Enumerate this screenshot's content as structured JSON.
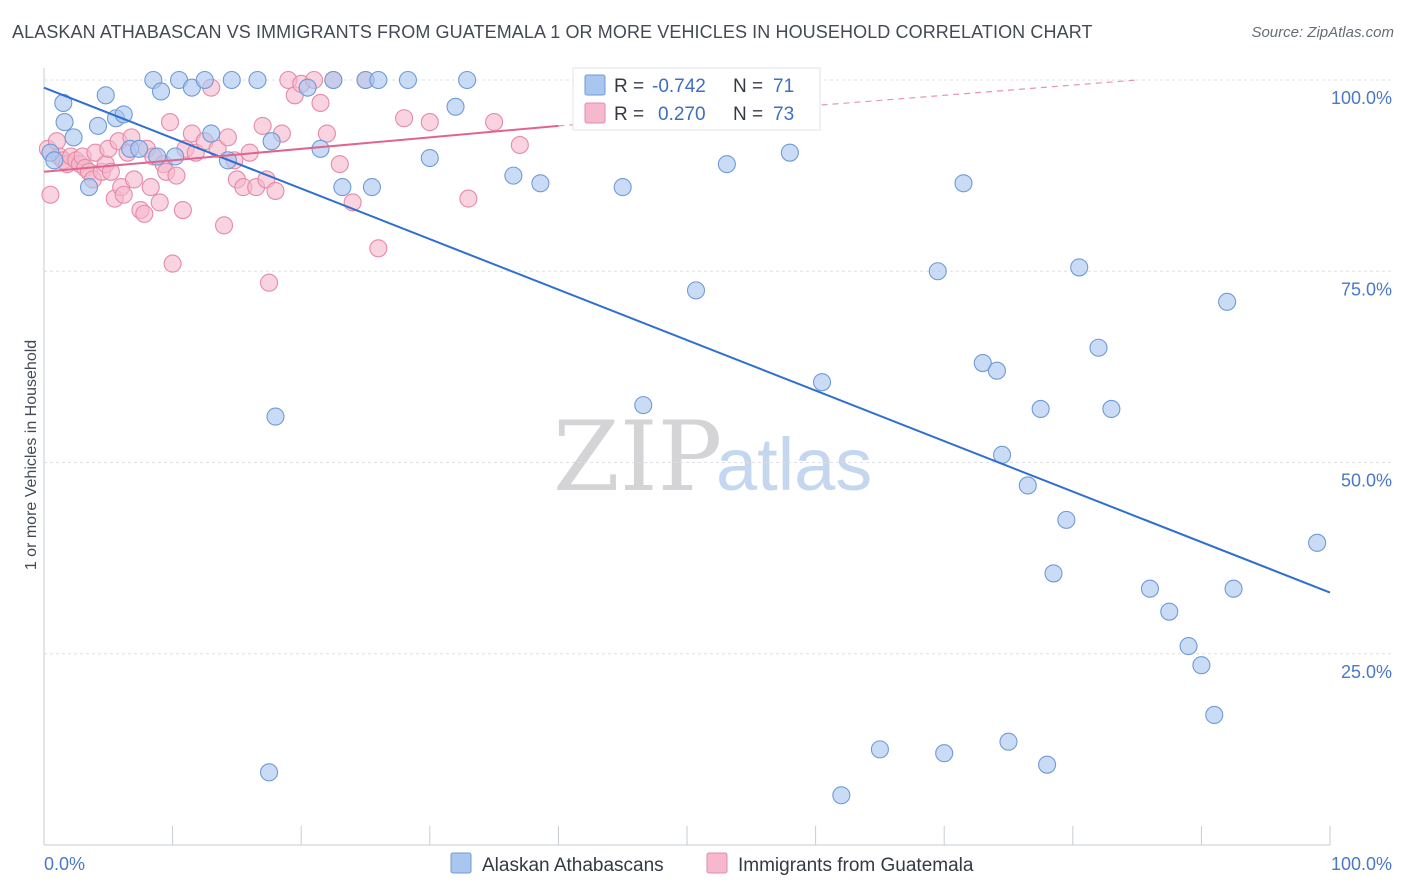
{
  "header": {
    "title": "ALASKAN ATHABASCAN VS IMMIGRANTS FROM GUATEMALA 1 OR MORE VEHICLES IN HOUSEHOLD CORRELATION CHART",
    "source": "Source: ZipAtlas.com"
  },
  "watermark": {
    "zip": "ZIP",
    "atlas": "atlas"
  },
  "colors": {
    "blue_fill": "#a9c6ef",
    "blue_stroke": "#6f9ad8",
    "blue_line": "#2f6fd0",
    "pink_fill": "#f6b8cc",
    "pink_stroke": "#e68aa8",
    "pink_line": "#e0648e",
    "grid": "#dde1e6",
    "tick_text": "#4a78c8"
  },
  "stats": {
    "r_label": "R =",
    "n_label": "N =",
    "blue": {
      "r": "-0.742",
      "n": "71"
    },
    "pink": {
      "r": "0.270",
      "n": "73"
    }
  },
  "chart_data": {
    "type": "scatter",
    "title": "ALASKAN ATHABASCAN VS IMMIGRANTS FROM GUATEMALA 1 OR MORE VEHICLES IN HOUSEHOLD CORRELATION CHART",
    "xlabel": "",
    "ylabel": "1 or more Vehicles in Household",
    "xlim": [
      0,
      100
    ],
    "ylim": [
      0,
      100
    ],
    "x_tick_labels": {
      "left": "0.0%",
      "right": "100.0%"
    },
    "y_ticks": [
      {
        "value": 25,
        "label": "25.0%"
      },
      {
        "value": 50,
        "label": "50.0%"
      },
      {
        "value": 75,
        "label": "75.0%"
      },
      {
        "value": 100,
        "label": "100.0%"
      }
    ],
    "grid": true,
    "legend_position": "bottom-center",
    "series": [
      {
        "name": "Alaskan Athabascans",
        "color": "#a9c6ef",
        "trend": {
          "x0": 0,
          "y0": 99,
          "x1": 100,
          "y1": 33
        },
        "points": [
          [
            0.5,
            90.5
          ],
          [
            0.8,
            89.5
          ],
          [
            1.5,
            97
          ],
          [
            1.6,
            94.5
          ],
          [
            2.3,
            92.5
          ],
          [
            3.5,
            86
          ],
          [
            4.2,
            94
          ],
          [
            4.8,
            98
          ],
          [
            5.6,
            95
          ],
          [
            6.2,
            95.5
          ],
          [
            6.7,
            91
          ],
          [
            7.4,
            91
          ],
          [
            8.5,
            100
          ],
          [
            8.8,
            90
          ],
          [
            9.1,
            98.5
          ],
          [
            10.2,
            90
          ],
          [
            10.5,
            100
          ],
          [
            11.5,
            99
          ],
          [
            12.5,
            100
          ],
          [
            13,
            93
          ],
          [
            14.3,
            89.5
          ],
          [
            14.6,
            100
          ],
          [
            16.6,
            100
          ],
          [
            17.7,
            92
          ],
          [
            18,
            56
          ],
          [
            17.5,
            9.5
          ],
          [
            20.5,
            99
          ],
          [
            21.5,
            91
          ],
          [
            22.5,
            100
          ],
          [
            23.2,
            86
          ],
          [
            25,
            100
          ],
          [
            25.5,
            86
          ],
          [
            26,
            100
          ],
          [
            28.3,
            100
          ],
          [
            30,
            89.8
          ],
          [
            32,
            96.5
          ],
          [
            32.9,
            100
          ],
          [
            36.5,
            87.5
          ],
          [
            38.6,
            86.5
          ],
          [
            42.2,
            100
          ],
          [
            45,
            86
          ],
          [
            46.6,
            57.5
          ],
          [
            50.7,
            72.5
          ],
          [
            53.1,
            89
          ],
          [
            58,
            90.5
          ],
          [
            60.5,
            60.5
          ],
          [
            62,
            6.5
          ],
          [
            65,
            12.5
          ],
          [
            69.5,
            75
          ],
          [
            70,
            12
          ],
          [
            71.5,
            86.5
          ],
          [
            73,
            63
          ],
          [
            74.1,
            62
          ],
          [
            74.5,
            51
          ],
          [
            75,
            13.5
          ],
          [
            76.5,
            47
          ],
          [
            77.5,
            57
          ],
          [
            78,
            10.5
          ],
          [
            78.5,
            35.5
          ],
          [
            79.5,
            42.5
          ],
          [
            80.5,
            75.5
          ],
          [
            82,
            65
          ],
          [
            83,
            57
          ],
          [
            86,
            33.5
          ],
          [
            87.5,
            30.5
          ],
          [
            89,
            26
          ],
          [
            90,
            23.5
          ],
          [
            91,
            17
          ],
          [
            92,
            71
          ],
          [
            92.5,
            33.5
          ],
          [
            99,
            39.5
          ]
        ]
      },
      {
        "name": "Immigrants from Guatemala",
        "color": "#f6b8cc",
        "trend": {
          "x0": 0,
          "y0": 88,
          "x1": 40,
          "y1": 94,
          "dashed_to": {
            "x": 85,
            "y": 100
          }
        },
        "points": [
          [
            0.3,
            91
          ],
          [
            0.5,
            85
          ],
          [
            1,
            92
          ],
          [
            1.2,
            90
          ],
          [
            1.5,
            89.5
          ],
          [
            1.8,
            89
          ],
          [
            2.1,
            90
          ],
          [
            2.5,
            89.5
          ],
          [
            2.8,
            89
          ],
          [
            3,
            90
          ],
          [
            3.2,
            88.5
          ],
          [
            3.5,
            88
          ],
          [
            3.8,
            87
          ],
          [
            4,
            90.5
          ],
          [
            4.5,
            88
          ],
          [
            4.8,
            89
          ],
          [
            5,
            91
          ],
          [
            5.2,
            88
          ],
          [
            5.5,
            84.5
          ],
          [
            5.8,
            92
          ],
          [
            6,
            86
          ],
          [
            6.2,
            85
          ],
          [
            6.5,
            90.5
          ],
          [
            6.8,
            92.5
          ],
          [
            7,
            87
          ],
          [
            7.5,
            83
          ],
          [
            7.8,
            82.5
          ],
          [
            8,
            91
          ],
          [
            8.3,
            86
          ],
          [
            8.5,
            90
          ],
          [
            9,
            84
          ],
          [
            9.3,
            89
          ],
          [
            9.5,
            88
          ],
          [
            9.8,
            94.5
          ],
          [
            10,
            76
          ],
          [
            10.3,
            87.5
          ],
          [
            10.8,
            83
          ],
          [
            11,
            91
          ],
          [
            11.5,
            93
          ],
          [
            11.8,
            90.5
          ],
          [
            12.5,
            92
          ],
          [
            13,
            99
          ],
          [
            13.5,
            91
          ],
          [
            14,
            81
          ],
          [
            14.3,
            92.5
          ],
          [
            14.8,
            89.5
          ],
          [
            15,
            87
          ],
          [
            15.5,
            86
          ],
          [
            16,
            90.5
          ],
          [
            16.5,
            86
          ],
          [
            17,
            94
          ],
          [
            17.3,
            87
          ],
          [
            17.5,
            73.5
          ],
          [
            18,
            85.5
          ],
          [
            18.5,
            93
          ],
          [
            19,
            100
          ],
          [
            19.5,
            98
          ],
          [
            20,
            99.5
          ],
          [
            21,
            100
          ],
          [
            21.5,
            97
          ],
          [
            22,
            93
          ],
          [
            22.5,
            100
          ],
          [
            23,
            89
          ],
          [
            24,
            84
          ],
          [
            25,
            100
          ],
          [
            26,
            78
          ],
          [
            28,
            95
          ],
          [
            30,
            94.5
          ],
          [
            33,
            84.5
          ],
          [
            35,
            94.5
          ],
          [
            37,
            91.5
          ],
          [
            52,
            100
          ],
          [
            55,
            96
          ]
        ]
      }
    ]
  },
  "legend": {
    "items": [
      {
        "label": "Alaskan Athabascans"
      },
      {
        "label": "Immigrants from Guatemala"
      }
    ]
  }
}
